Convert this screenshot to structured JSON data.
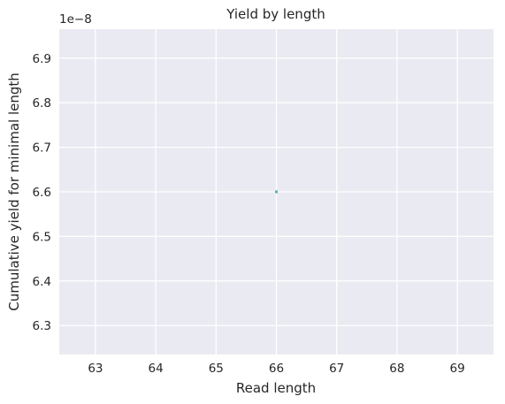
{
  "chart_data": {
    "type": "scatter",
    "title": "Yield by length",
    "xlabel": "Read length",
    "ylabel": "Cumulative yield for minimal length",
    "y_offset_label": "1e−8",
    "xlim": [
      62.4,
      69.6
    ],
    "ylim": [
      6.235,
      6.965
    ],
    "x_ticks": [
      63,
      64,
      65,
      66,
      67,
      68,
      69
    ],
    "x_tick_labels": [
      "63",
      "64",
      "65",
      "66",
      "67",
      "68",
      "69"
    ],
    "y_ticks": [
      6.3,
      6.4,
      6.5,
      6.6,
      6.7,
      6.8,
      6.9
    ],
    "y_tick_labels": [
      "6.3",
      "6.4",
      "6.5",
      "6.6",
      "6.7",
      "6.8",
      "6.9"
    ],
    "grid": true,
    "series": [
      {
        "x": [
          66
        ],
        "y": [
          6.6
        ],
        "color": "#4cb8a8"
      }
    ],
    "background_color": "#eaeaf2",
    "grid_color": "#ffffff"
  }
}
